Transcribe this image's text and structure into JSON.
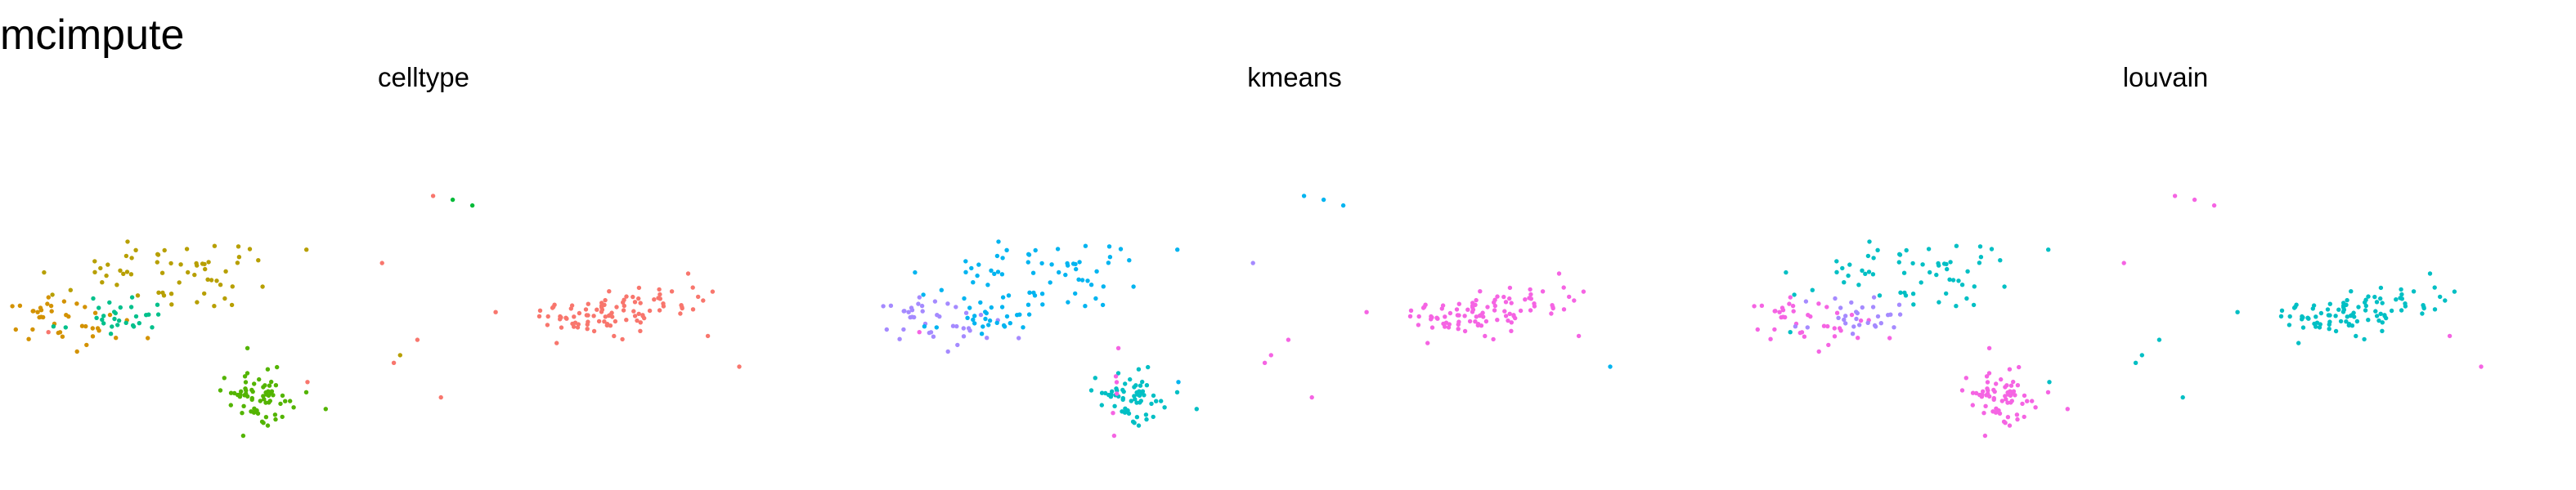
{
  "title": "mcimpute",
  "colors": {
    "red": "#F8766D",
    "olive": "#B79F00",
    "green": "#00BA38",
    "teal": "#00BFC4",
    "blue": "#00B4F0",
    "purple": "#A58AFF",
    "magenta": "#F564E3",
    "orange": "#D39200",
    "seafoam": "#00C08B",
    "brightgreen": "#53B400"
  },
  "chart_data": [
    {
      "type": "scatter",
      "title": "celltype",
      "xlabel": "",
      "ylabel": "",
      "xlim": [
        0,
        100
      ],
      "ylim": [
        0,
        100
      ],
      "grid": false,
      "legend": "none",
      "clusters": [
        {
          "key": "A",
          "color": "orange"
        },
        {
          "key": "B",
          "color": "seafoam"
        },
        {
          "key": "C",
          "color": "olive"
        },
        {
          "key": "D",
          "color": "brightgreen"
        },
        {
          "key": "E",
          "color": "brightgreen"
        },
        {
          "key": "F",
          "color": "red"
        },
        {
          "key": "G",
          "color": "red"
        }
      ],
      "stragglers": [
        {
          "x": 2.0,
          "y": 39.0,
          "color": "red"
        },
        {
          "x": 46.0,
          "y": 31.0,
          "color": "red"
        },
        {
          "x": 46.8,
          "y": 33.0,
          "color": "olive"
        },
        {
          "x": 49.0,
          "y": 37.0,
          "color": "red"
        },
        {
          "x": 52.0,
          "y": 22.0,
          "color": "red"
        },
        {
          "x": 44.5,
          "y": 57.0,
          "color": "red"
        },
        {
          "x": 53.5,
          "y": 73.5,
          "color": "green"
        },
        {
          "x": 51.0,
          "y": 74.5,
          "color": "red"
        },
        {
          "x": 56.0,
          "y": 72.0,
          "color": "green"
        },
        {
          "x": 35.0,
          "y": 26.0,
          "color": "red"
        },
        {
          "x": 86.0,
          "y": 38.0,
          "color": "red"
        },
        {
          "x": 90.0,
          "y": 30.0,
          "color": "red"
        },
        {
          "x": 11.0,
          "y": 42.0,
          "color": "seafoam"
        },
        {
          "x": 4.0,
          "y": 47.0,
          "color": "orange"
        }
      ]
    },
    {
      "type": "scatter",
      "title": "kmeans",
      "xlabel": "",
      "ylabel": "",
      "xlim": [
        0,
        100
      ],
      "ylim": [
        0,
        100
      ],
      "grid": false,
      "legend": "none",
      "clusters": [
        {
          "key": "A",
          "color": "purple"
        },
        {
          "key": "B",
          "color": "blue"
        },
        {
          "key": "C",
          "color": "blue"
        },
        {
          "key": "D",
          "color": "teal"
        },
        {
          "key": "E",
          "color": "magenta"
        },
        {
          "key": "F",
          "color": "magenta"
        },
        {
          "key": "G",
          "color": "magenta"
        }
      ],
      "stragglers": [
        {
          "x": 2.0,
          "y": 39.0,
          "color": "magenta"
        },
        {
          "x": 46.0,
          "y": 31.0,
          "color": "magenta"
        },
        {
          "x": 46.8,
          "y": 33.0,
          "color": "magenta"
        },
        {
          "x": 49.0,
          "y": 37.0,
          "color": "magenta"
        },
        {
          "x": 52.0,
          "y": 22.0,
          "color": "magenta"
        },
        {
          "x": 44.5,
          "y": 57.0,
          "color": "purple"
        },
        {
          "x": 53.5,
          "y": 73.5,
          "color": "blue"
        },
        {
          "x": 51.0,
          "y": 74.5,
          "color": "blue"
        },
        {
          "x": 56.0,
          "y": 72.0,
          "color": "blue"
        },
        {
          "x": 35.0,
          "y": 26.0,
          "color": "blue"
        },
        {
          "x": 86.0,
          "y": 38.0,
          "color": "magenta"
        },
        {
          "x": 90.0,
          "y": 30.0,
          "color": "blue"
        },
        {
          "x": 11.0,
          "y": 42.0,
          "color": "blue"
        },
        {
          "x": 4.0,
          "y": 47.0,
          "color": "purple"
        }
      ]
    },
    {
      "type": "scatter",
      "title": "louvain",
      "xlabel": "",
      "ylabel": "",
      "xlim": [
        0,
        100
      ],
      "ylim": [
        0,
        100
      ],
      "grid": false,
      "legend": "none",
      "clusters": [
        {
          "key": "A",
          "color": "magenta"
        },
        {
          "key": "B",
          "color": "purple"
        },
        {
          "key": "C",
          "color": "teal"
        },
        {
          "key": "D",
          "color": "magenta"
        },
        {
          "key": "E",
          "color": "magenta"
        },
        {
          "key": "F",
          "color": "teal"
        },
        {
          "key": "G",
          "color": "teal"
        }
      ],
      "stragglers": [
        {
          "x": 2.0,
          "y": 39.0,
          "color": "teal"
        },
        {
          "x": 46.0,
          "y": 31.0,
          "color": "teal"
        },
        {
          "x": 46.8,
          "y": 33.0,
          "color": "teal"
        },
        {
          "x": 49.0,
          "y": 37.0,
          "color": "teal"
        },
        {
          "x": 52.0,
          "y": 22.0,
          "color": "teal"
        },
        {
          "x": 44.5,
          "y": 57.0,
          "color": "magenta"
        },
        {
          "x": 53.5,
          "y": 73.5,
          "color": "magenta"
        },
        {
          "x": 51.0,
          "y": 74.5,
          "color": "magenta"
        },
        {
          "x": 56.0,
          "y": 72.0,
          "color": "magenta"
        },
        {
          "x": 35.0,
          "y": 26.0,
          "color": "teal"
        },
        {
          "x": 86.0,
          "y": 38.0,
          "color": "magenta"
        },
        {
          "x": 90.0,
          "y": 30.0,
          "color": "magenta"
        },
        {
          "x": 11.0,
          "y": 42.0,
          "color": "magenta"
        },
        {
          "x": 4.0,
          "y": 47.0,
          "color": "purple"
        }
      ]
    }
  ]
}
